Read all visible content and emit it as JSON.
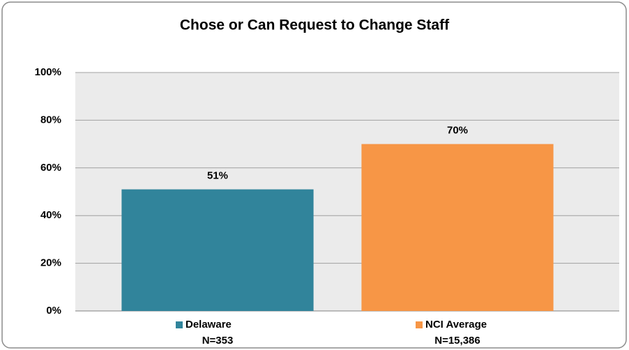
{
  "chart_data": {
    "type": "bar",
    "title": "Chose or Can Request to Change Staff",
    "categories": [
      "Delaware",
      "NCI Average"
    ],
    "sample_sizes": [
      "N=353",
      "N=15,386"
    ],
    "values": [
      51,
      70
    ],
    "value_labels": [
      "51%",
      "70%"
    ],
    "colors": [
      "#31849b",
      "#f79646"
    ],
    "ylim": [
      0,
      100
    ],
    "yticks": [
      {
        "value": 0,
        "label": "0%"
      },
      {
        "value": 20,
        "label": "20%"
      },
      {
        "value": 40,
        "label": "40%"
      },
      {
        "value": 60,
        "label": "60%"
      },
      {
        "value": 80,
        "label": "80%"
      },
      {
        "value": 100,
        "label": "100%"
      }
    ],
    "grid": true
  }
}
